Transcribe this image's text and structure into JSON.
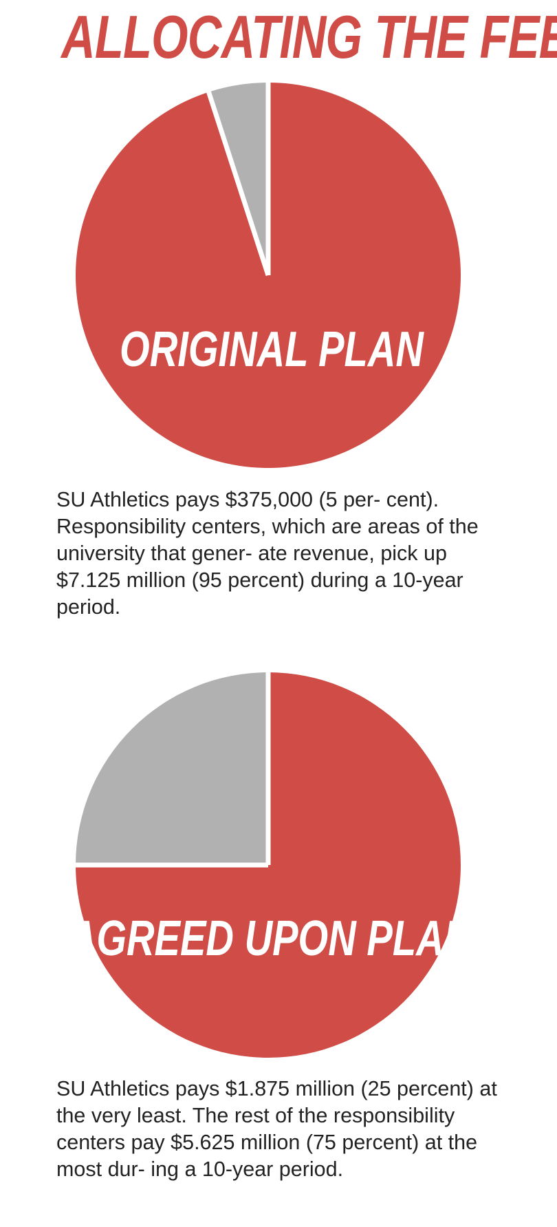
{
  "title": "ALLOCATING THE FEE",
  "colors": {
    "accent_red": "#cf4d46",
    "slice_gray": "#b1b1b1",
    "separator": "#ffffff",
    "text": "#222222"
  },
  "chart_data": [
    {
      "type": "pie",
      "label": "ORIGINAL PLAN",
      "slices": [
        {
          "value": 5,
          "amount": "$375,000",
          "color": "#b1b1b1"
        },
        {
          "value": 95,
          "amount": "$7.125 million",
          "color": "#cf4d46"
        }
      ],
      "caption": "SU Athletics pays $375,000 (5 per- cent). Responsibility centers, which are areas of the university that gener- ate revenue, pick up $7.125 million (95 percent) during a 10-year period."
    },
    {
      "type": "pie",
      "label": "AGREED UPON PLAN",
      "slices": [
        {
          "value": 25,
          "amount": "$1.875 million",
          "color": "#b1b1b1"
        },
        {
          "value": 75,
          "amount": "$5.625 million",
          "color": "#cf4d46"
        }
      ],
      "caption": "SU Athletics pays $1.875 million (25 percent) at the very least. The rest of the responsibility centers pay $5.625 million (75 percent) at the most dur- ing a 10-year period."
    }
  ]
}
